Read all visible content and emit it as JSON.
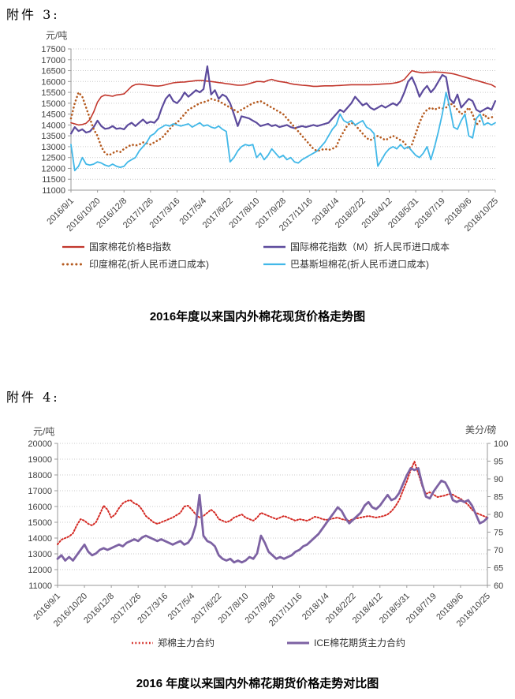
{
  "page": {
    "attachment3_label": "附件 3:",
    "attachment4_label": "附件 4:"
  },
  "chart_data": [
    {
      "type": "line",
      "title": "2016年度以来国内外棉花现货价格走势图",
      "y_axis": {
        "unit": "元/吨",
        "min": 11000,
        "max": 17500,
        "step": 500
      },
      "grid": "horizontal-dotted",
      "legend_position": "bottom",
      "x_ticks": [
        "2016/9/1",
        "2016/10/20",
        "2016/12/8",
        "2017/1/26",
        "2017/3/16",
        "2017/5/4",
        "2017/6/22",
        "2017/8/10",
        "2017/9/28",
        "2017/11/16",
        "2018/1/4",
        "2018/2/22",
        "2018/4/12",
        "2018/5/31",
        "2018/7/19",
        "2018/9/6",
        "2018/10/25"
      ],
      "series": [
        {
          "name": "国家棉花价格B指数",
          "color": "#c2372d",
          "style": "solid",
          "values": [
            14100,
            14050,
            14000,
            14020,
            14080,
            14250,
            14600,
            15050,
            15300,
            15380,
            15350,
            15320,
            15380,
            15400,
            15430,
            15600,
            15780,
            15860,
            15880,
            15860,
            15840,
            15820,
            15800,
            15790,
            15810,
            15850,
            15900,
            15940,
            15960,
            15970,
            15980,
            16000,
            16020,
            16040,
            16050,
            16040,
            16020,
            16000,
            15980,
            15950,
            15930,
            15900,
            15880,
            15850,
            15830,
            15830,
            15850,
            15900,
            15950,
            16000,
            16000,
            15980,
            16050,
            16100,
            16040,
            16000,
            15980,
            15950,
            15900,
            15870,
            15850,
            15830,
            15820,
            15800,
            15780,
            15780,
            15790,
            15800,
            15800,
            15800,
            15810,
            15820,
            15830,
            15840,
            15850,
            15850,
            15850,
            15850,
            15850,
            15850,
            15860,
            15870,
            15880,
            15890,
            15900,
            15920,
            15950,
            16000,
            16100,
            16300,
            16500,
            16450,
            16420,
            16400,
            16420,
            16430,
            16440,
            16430,
            16420,
            16400,
            16380,
            16350,
            16300,
            16250,
            16200,
            16150,
            16100,
            16050,
            16000,
            15950,
            15900,
            15850,
            15750
          ]
        },
        {
          "name": "国际棉花指数（M）折人民币进口成本",
          "color": "#5c4a9c",
          "style": "solid",
          "values": [
            13600,
            13900,
            13720,
            13800,
            13650,
            13700,
            13900,
            14200,
            13950,
            13820,
            13850,
            13950,
            13820,
            13850,
            13800,
            14000,
            14100,
            13950,
            14100,
            14250,
            14080,
            14150,
            14100,
            14300,
            14800,
            15200,
            15400,
            15100,
            15000,
            15200,
            15500,
            15300,
            15450,
            15600,
            15500,
            15650,
            16700,
            15400,
            15600,
            15200,
            15400,
            15300,
            15000,
            14500,
            13950,
            14400,
            14350,
            14300,
            14200,
            14100,
            13950,
            14000,
            14050,
            13950,
            14000,
            13900,
            13950,
            14000,
            13900,
            13850,
            13900,
            13950,
            13900,
            13950,
            14000,
            13950,
            14000,
            14050,
            14100,
            14300,
            14500,
            14700,
            14600,
            14800,
            15000,
            15300,
            15100,
            14900,
            15000,
            14800,
            14700,
            14800,
            14900,
            14800,
            14900,
            15000,
            14900,
            15100,
            15500,
            16000,
            16200,
            15800,
            15300,
            15600,
            15800,
            15500,
            15700,
            16000,
            16300,
            16200,
            15200,
            15000,
            15400,
            14800,
            15000,
            15200,
            15100,
            14700,
            14600,
            14700,
            14800,
            14700,
            15100
          ]
        },
        {
          "name": "印度棉花(折人民币进口成本)",
          "color": "#b55a1f",
          "style": "dotted",
          "values": [
            14300,
            15000,
            15500,
            15300,
            14800,
            14300,
            13800,
            13500,
            13000,
            12700,
            12600,
            12700,
            12800,
            12750,
            12900,
            13000,
            13100,
            13050,
            13100,
            13200,
            13150,
            13100,
            13200,
            13300,
            13400,
            13600,
            13800,
            14000,
            14100,
            14300,
            14500,
            14700,
            14800,
            14900,
            15000,
            15050,
            15100,
            15200,
            15150,
            15100,
            15000,
            14900,
            14800,
            14700,
            14600,
            14700,
            14800,
            14900,
            15000,
            15050,
            15100,
            15000,
            14900,
            14800,
            14700,
            14600,
            14500,
            14300,
            14100,
            13900,
            13700,
            13500,
            13300,
            13100,
            12900,
            12800,
            12850,
            12900,
            12850,
            12900,
            13000,
            13400,
            13700,
            14000,
            14100,
            14000,
            13800,
            13600,
            13400,
            13300,
            13400,
            13500,
            13400,
            13300,
            13400,
            13500,
            13400,
            13300,
            13200,
            12900,
            13100,
            13600,
            14100,
            14500,
            14700,
            14800,
            14700,
            14800,
            14750,
            14800,
            15000,
            14900,
            14700,
            14500,
            14600,
            14800,
            14500,
            14000,
            14200,
            14500,
            14300,
            14350,
            14400
          ]
        },
        {
          "name": "巴基斯坦棉花(折人民币进口成本)",
          "color": "#41b8e8",
          "style": "solid",
          "values": [
            13100,
            11900,
            12100,
            12500,
            12200,
            12150,
            12200,
            12300,
            12250,
            12150,
            12100,
            12200,
            12100,
            12050,
            12100,
            12300,
            12400,
            12500,
            12800,
            13000,
            13200,
            13500,
            13600,
            13800,
            13900,
            14000,
            13950,
            14050,
            14000,
            13950,
            14000,
            14050,
            13900,
            14000,
            14100,
            13950,
            14000,
            13900,
            13850,
            13950,
            13800,
            13700,
            12300,
            12500,
            12800,
            13000,
            13100,
            13050,
            13100,
            12500,
            12700,
            12400,
            12600,
            12900,
            12700,
            12500,
            12600,
            12400,
            12500,
            12300,
            12250,
            12400,
            12500,
            12600,
            12700,
            12800,
            13000,
            13200,
            13500,
            13800,
            14000,
            14500,
            14200,
            14100,
            14200,
            14000,
            14100,
            14200,
            13900,
            13800,
            13600,
            12100,
            12400,
            12700,
            12900,
            13000,
            12900,
            13100,
            12900,
            13000,
            12800,
            12600,
            12500,
            12700,
            13000,
            12400,
            13000,
            13700,
            14500,
            15500,
            14800,
            13900,
            13800,
            14200,
            14500,
            13500,
            13400,
            14300,
            14500,
            14000,
            14100,
            14000,
            14100
          ]
        }
      ]
    },
    {
      "type": "line",
      "title": "2016 年度以来国内外棉花期货价格走势对比图",
      "left_axis": {
        "unit": "元/吨",
        "min": 11000,
        "max": 20000,
        "step": 1000
      },
      "right_axis": {
        "unit": "美分/磅",
        "min": 60,
        "max": 100,
        "step": 5
      },
      "grid": "horizontal-dotted",
      "legend_position": "bottom",
      "x_ticks": [
        "2016/9/1",
        "2016/10/20",
        "2016/12/8",
        "2017/1/26",
        "2017/3/16",
        "2017/5/4",
        "2017/6/22",
        "2017/8/10",
        "2017/9/28",
        "2017/11/16",
        "2018/1/4",
        "2018/2/22",
        "2018/4/12",
        "2018/5/31",
        "2018/7/19",
        "2018/9/6",
        "2018/10/25"
      ],
      "series": [
        {
          "name": "郑棉主力合约",
          "color": "#d42a24",
          "style": "dotted",
          "axis": "left",
          "values": [
            13600,
            13900,
            14000,
            14100,
            14300,
            14800,
            15200,
            15100,
            14900,
            14800,
            15000,
            15500,
            16050,
            15800,
            15300,
            15500,
            15900,
            16200,
            16350,
            16400,
            16200,
            16100,
            15800,
            15400,
            15200,
            15000,
            14900,
            15000,
            15100,
            15200,
            15300,
            15450,
            15600,
            16000,
            16050,
            15800,
            15500,
            15300,
            15400,
            15600,
            15800,
            15600,
            15200,
            15100,
            15000,
            15100,
            15300,
            15400,
            15500,
            15300,
            15200,
            15100,
            15300,
            15600,
            15500,
            15400,
            15300,
            15200,
            15300,
            15400,
            15300,
            15200,
            15100,
            15200,
            15150,
            15100,
            15200,
            15350,
            15300,
            15200,
            15150,
            15200,
            15250,
            15300,
            15200,
            15150,
            15100,
            15200,
            15250,
            15300,
            15350,
            15400,
            15350,
            15300,
            15350,
            15400,
            15500,
            15700,
            16000,
            16400,
            17000,
            17600,
            18300,
            18850,
            18100,
            17300,
            16800,
            16900,
            16750,
            16600,
            16650,
            16700,
            16800,
            16750,
            16600,
            16500,
            16300,
            16100,
            15800,
            15600,
            15500,
            15400,
            15300
          ]
        },
        {
          "name": "ICE棉花期货主力合约",
          "color": "#7d62a3",
          "style": "solid",
          "axis": "right",
          "values": [
            67.5,
            68.5,
            67,
            68,
            67,
            68.5,
            70,
            71.5,
            69.5,
            68.5,
            69,
            70,
            70.5,
            70,
            70.5,
            71,
            71.5,
            71,
            72,
            72.5,
            73,
            72.5,
            73.5,
            74,
            73.5,
            73,
            72.5,
            73,
            72.5,
            72,
            71.5,
            72,
            72.5,
            71.5,
            72,
            73.5,
            77,
            85.5,
            74,
            72.5,
            72,
            71,
            68.5,
            67.5,
            67,
            67.5,
            66.5,
            67,
            66.5,
            67,
            68,
            67.5,
            69,
            74,
            72,
            69.5,
            68.5,
            67.5,
            68,
            67.5,
            68,
            68.5,
            69.5,
            70,
            71,
            71.5,
            72.5,
            73.5,
            74.5,
            76,
            77.5,
            79,
            80.5,
            82,
            81,
            79,
            77.5,
            78.5,
            79.5,
            80.5,
            82.5,
            83.5,
            82,
            81.5,
            82.5,
            84,
            85.5,
            84,
            84.5,
            86,
            88.5,
            91,
            93,
            92.5,
            93,
            88.5,
            85,
            84.5,
            86.5,
            88,
            89.5,
            89,
            87,
            84,
            83.5,
            84,
            83.5,
            84,
            82.5,
            80,
            77.5,
            78,
            79
          ]
        }
      ]
    }
  ]
}
